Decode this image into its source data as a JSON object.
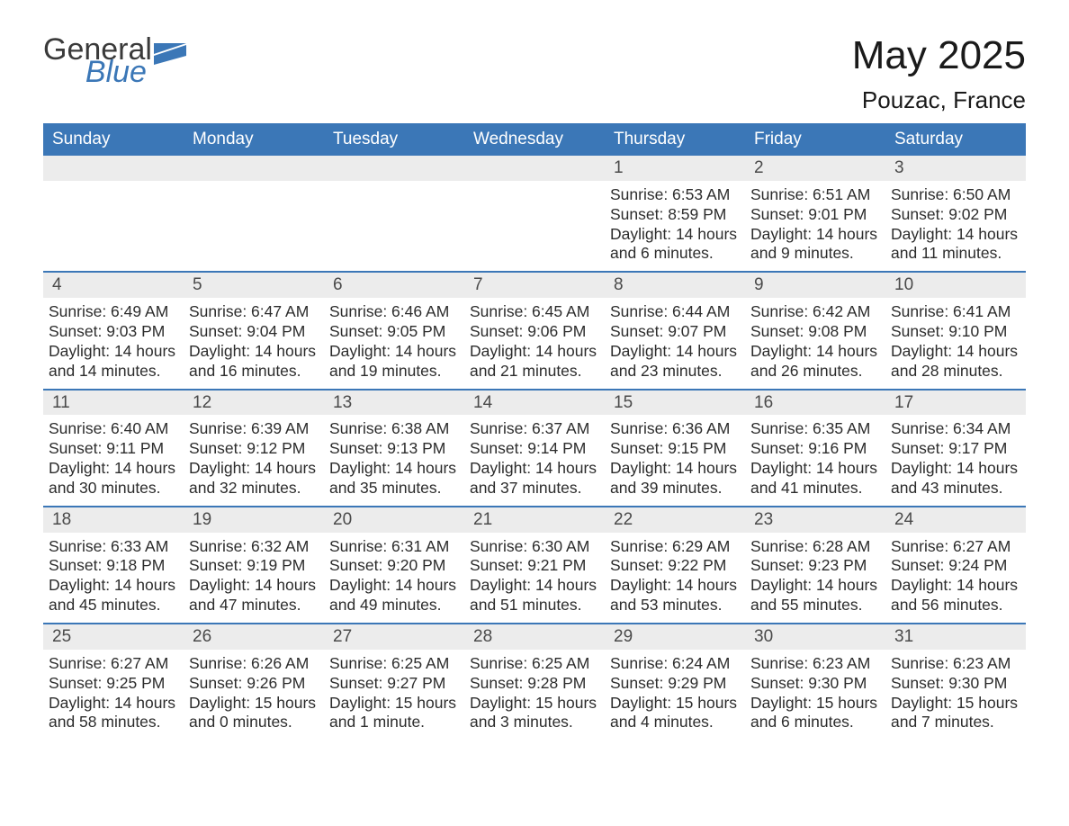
{
  "logo": {
    "word1": "General",
    "word2": "Blue",
    "gray": "#3a3a3a",
    "blue": "#3b77b7"
  },
  "title": "May 2025",
  "location": "Pouzac, France",
  "colors": {
    "header_bg": "#3b77b7",
    "header_fg": "#ffffff",
    "row_accent": "#3b77b7",
    "daynum_bg": "#ececec",
    "text": "#2c2c2c",
    "bg": "#ffffff"
  },
  "day_names": [
    "Sunday",
    "Monday",
    "Tuesday",
    "Wednesday",
    "Thursday",
    "Friday",
    "Saturday"
  ],
  "weeks": [
    [
      null,
      null,
      null,
      null,
      {
        "day": "1",
        "sunrise": "Sunrise: 6:53 AM",
        "sunset": "Sunset: 8:59 PM",
        "dl1": "Daylight: 14 hours",
        "dl2": "and 6 minutes."
      },
      {
        "day": "2",
        "sunrise": "Sunrise: 6:51 AM",
        "sunset": "Sunset: 9:01 PM",
        "dl1": "Daylight: 14 hours",
        "dl2": "and 9 minutes."
      },
      {
        "day": "3",
        "sunrise": "Sunrise: 6:50 AM",
        "sunset": "Sunset: 9:02 PM",
        "dl1": "Daylight: 14 hours",
        "dl2": "and 11 minutes."
      }
    ],
    [
      {
        "day": "4",
        "sunrise": "Sunrise: 6:49 AM",
        "sunset": "Sunset: 9:03 PM",
        "dl1": "Daylight: 14 hours",
        "dl2": "and 14 minutes."
      },
      {
        "day": "5",
        "sunrise": "Sunrise: 6:47 AM",
        "sunset": "Sunset: 9:04 PM",
        "dl1": "Daylight: 14 hours",
        "dl2": "and 16 minutes."
      },
      {
        "day": "6",
        "sunrise": "Sunrise: 6:46 AM",
        "sunset": "Sunset: 9:05 PM",
        "dl1": "Daylight: 14 hours",
        "dl2": "and 19 minutes."
      },
      {
        "day": "7",
        "sunrise": "Sunrise: 6:45 AM",
        "sunset": "Sunset: 9:06 PM",
        "dl1": "Daylight: 14 hours",
        "dl2": "and 21 minutes."
      },
      {
        "day": "8",
        "sunrise": "Sunrise: 6:44 AM",
        "sunset": "Sunset: 9:07 PM",
        "dl1": "Daylight: 14 hours",
        "dl2": "and 23 minutes."
      },
      {
        "day": "9",
        "sunrise": "Sunrise: 6:42 AM",
        "sunset": "Sunset: 9:08 PM",
        "dl1": "Daylight: 14 hours",
        "dl2": "and 26 minutes."
      },
      {
        "day": "10",
        "sunrise": "Sunrise: 6:41 AM",
        "sunset": "Sunset: 9:10 PM",
        "dl1": "Daylight: 14 hours",
        "dl2": "and 28 minutes."
      }
    ],
    [
      {
        "day": "11",
        "sunrise": "Sunrise: 6:40 AM",
        "sunset": "Sunset: 9:11 PM",
        "dl1": "Daylight: 14 hours",
        "dl2": "and 30 minutes."
      },
      {
        "day": "12",
        "sunrise": "Sunrise: 6:39 AM",
        "sunset": "Sunset: 9:12 PM",
        "dl1": "Daylight: 14 hours",
        "dl2": "and 32 minutes."
      },
      {
        "day": "13",
        "sunrise": "Sunrise: 6:38 AM",
        "sunset": "Sunset: 9:13 PM",
        "dl1": "Daylight: 14 hours",
        "dl2": "and 35 minutes."
      },
      {
        "day": "14",
        "sunrise": "Sunrise: 6:37 AM",
        "sunset": "Sunset: 9:14 PM",
        "dl1": "Daylight: 14 hours",
        "dl2": "and 37 minutes."
      },
      {
        "day": "15",
        "sunrise": "Sunrise: 6:36 AM",
        "sunset": "Sunset: 9:15 PM",
        "dl1": "Daylight: 14 hours",
        "dl2": "and 39 minutes."
      },
      {
        "day": "16",
        "sunrise": "Sunrise: 6:35 AM",
        "sunset": "Sunset: 9:16 PM",
        "dl1": "Daylight: 14 hours",
        "dl2": "and 41 minutes."
      },
      {
        "day": "17",
        "sunrise": "Sunrise: 6:34 AM",
        "sunset": "Sunset: 9:17 PM",
        "dl1": "Daylight: 14 hours",
        "dl2": "and 43 minutes."
      }
    ],
    [
      {
        "day": "18",
        "sunrise": "Sunrise: 6:33 AM",
        "sunset": "Sunset: 9:18 PM",
        "dl1": "Daylight: 14 hours",
        "dl2": "and 45 minutes."
      },
      {
        "day": "19",
        "sunrise": "Sunrise: 6:32 AM",
        "sunset": "Sunset: 9:19 PM",
        "dl1": "Daylight: 14 hours",
        "dl2": "and 47 minutes."
      },
      {
        "day": "20",
        "sunrise": "Sunrise: 6:31 AM",
        "sunset": "Sunset: 9:20 PM",
        "dl1": "Daylight: 14 hours",
        "dl2": "and 49 minutes."
      },
      {
        "day": "21",
        "sunrise": "Sunrise: 6:30 AM",
        "sunset": "Sunset: 9:21 PM",
        "dl1": "Daylight: 14 hours",
        "dl2": "and 51 minutes."
      },
      {
        "day": "22",
        "sunrise": "Sunrise: 6:29 AM",
        "sunset": "Sunset: 9:22 PM",
        "dl1": "Daylight: 14 hours",
        "dl2": "and 53 minutes."
      },
      {
        "day": "23",
        "sunrise": "Sunrise: 6:28 AM",
        "sunset": "Sunset: 9:23 PM",
        "dl1": "Daylight: 14 hours",
        "dl2": "and 55 minutes."
      },
      {
        "day": "24",
        "sunrise": "Sunrise: 6:27 AM",
        "sunset": "Sunset: 9:24 PM",
        "dl1": "Daylight: 14 hours",
        "dl2": "and 56 minutes."
      }
    ],
    [
      {
        "day": "25",
        "sunrise": "Sunrise: 6:27 AM",
        "sunset": "Sunset: 9:25 PM",
        "dl1": "Daylight: 14 hours",
        "dl2": "and 58 minutes."
      },
      {
        "day": "26",
        "sunrise": "Sunrise: 6:26 AM",
        "sunset": "Sunset: 9:26 PM",
        "dl1": "Daylight: 15 hours",
        "dl2": "and 0 minutes."
      },
      {
        "day": "27",
        "sunrise": "Sunrise: 6:25 AM",
        "sunset": "Sunset: 9:27 PM",
        "dl1": "Daylight: 15 hours",
        "dl2": "and 1 minute."
      },
      {
        "day": "28",
        "sunrise": "Sunrise: 6:25 AM",
        "sunset": "Sunset: 9:28 PM",
        "dl1": "Daylight: 15 hours",
        "dl2": "and 3 minutes."
      },
      {
        "day": "29",
        "sunrise": "Sunrise: 6:24 AM",
        "sunset": "Sunset: 9:29 PM",
        "dl1": "Daylight: 15 hours",
        "dl2": "and 4 minutes."
      },
      {
        "day": "30",
        "sunrise": "Sunrise: 6:23 AM",
        "sunset": "Sunset: 9:30 PM",
        "dl1": "Daylight: 15 hours",
        "dl2": "and 6 minutes."
      },
      {
        "day": "31",
        "sunrise": "Sunrise: 6:23 AM",
        "sunset": "Sunset: 9:30 PM",
        "dl1": "Daylight: 15 hours",
        "dl2": "and 7 minutes."
      }
    ]
  ]
}
